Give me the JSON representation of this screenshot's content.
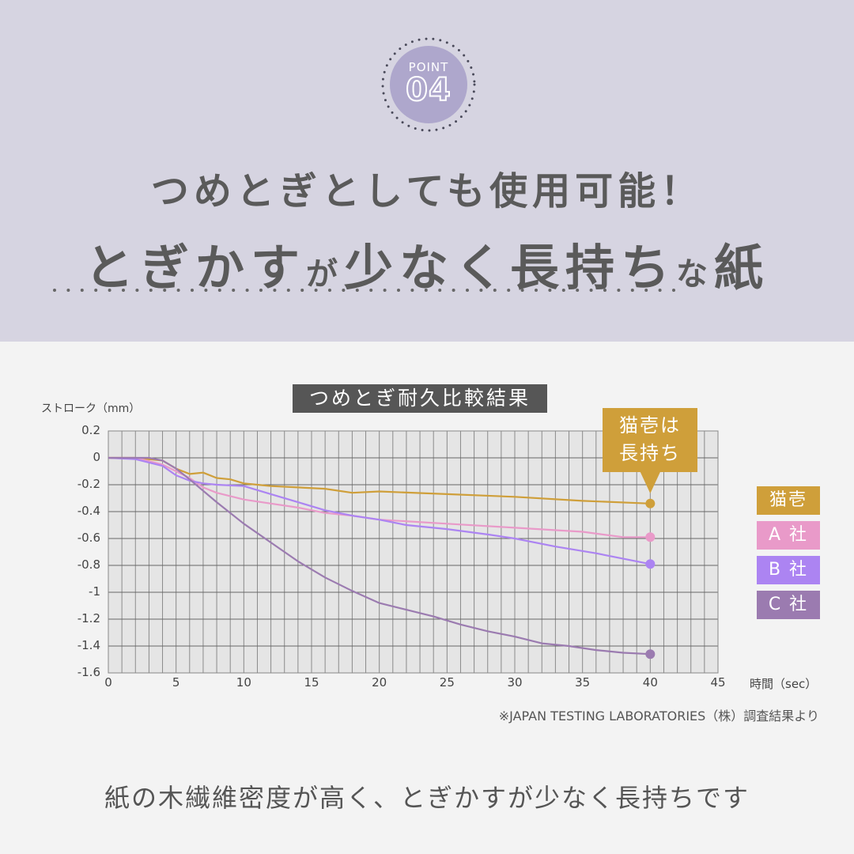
{
  "header": {
    "badge_label": "POINT",
    "badge_number": "04",
    "title_line1": "つめとぎとしても使用可能！",
    "title_line2_parts": [
      "とぎかす",
      "が",
      "少なく長持ち",
      "な",
      "紙"
    ]
  },
  "colors": {
    "header_bg": "#d6d4e1",
    "badge": "#aea7cc",
    "body_bg": "#f3f3f3",
    "nekoichi": "#cf9f3a",
    "company_a": "#e99ac9",
    "company_b": "#ac84f2",
    "company_c": "#9b7bb0",
    "chart_title_bg": "#565656",
    "plot_bg": "#e5e5e5"
  },
  "chart_data": {
    "type": "line",
    "title": "つめとぎ耐久比較結果",
    "xlabel": "時間（sec）",
    "ylabel": "ストローク（mm）",
    "xlim": [
      0,
      45
    ],
    "ylim": [
      -1.6,
      0.2
    ],
    "xticks": [
      "0",
      "5",
      "10",
      "15",
      "20",
      "25",
      "30",
      "35",
      "40",
      "45"
    ],
    "yticks": [
      "0.2",
      "0",
      "-0.2",
      "-0.4",
      "-0.6",
      "-0.8",
      "-1",
      "-1.2",
      "-1.4",
      "-1.6"
    ],
    "grid": true,
    "legend_position": "right",
    "series": [
      {
        "name": "猫壱",
        "color": "#cf9f3a",
        "x": [
          0,
          2,
          4,
          5,
          6,
          7,
          8,
          9,
          10,
          11,
          12,
          14,
          16,
          18,
          20,
          25,
          30,
          35,
          40
        ],
        "values": [
          0,
          0,
          -0.02,
          -0.08,
          -0.12,
          -0.11,
          -0.15,
          -0.16,
          -0.19,
          -0.2,
          -0.21,
          -0.22,
          -0.23,
          -0.26,
          -0.25,
          -0.27,
          -0.29,
          -0.32,
          -0.34
        ],
        "end_value": -0.34
      },
      {
        "name": "A 社",
        "color": "#e99ac9",
        "x": [
          0,
          2,
          4,
          5,
          6,
          7,
          8,
          10,
          12,
          14,
          16,
          18,
          20,
          25,
          30,
          35,
          38,
          40
        ],
        "values": [
          0,
          0,
          -0.05,
          -0.1,
          -0.15,
          -0.22,
          -0.26,
          -0.31,
          -0.34,
          -0.37,
          -0.41,
          -0.43,
          -0.46,
          -0.49,
          -0.52,
          -0.55,
          -0.59,
          -0.59
        ],
        "end_value": -0.59
      },
      {
        "name": "B 社",
        "color": "#ac84f2",
        "x": [
          0,
          2,
          4,
          5,
          6,
          7,
          8,
          10,
          12,
          14,
          16,
          18,
          20,
          22,
          25,
          28,
          30,
          33,
          36,
          40
        ],
        "values": [
          0,
          -0.01,
          -0.06,
          -0.13,
          -0.17,
          -0.19,
          -0.2,
          -0.21,
          -0.27,
          -0.33,
          -0.39,
          -0.43,
          -0.46,
          -0.5,
          -0.53,
          -0.57,
          -0.6,
          -0.66,
          -0.71,
          -0.79
        ],
        "end_value": -0.79
      },
      {
        "name": "C 社",
        "color": "#9b7bb0",
        "x": [
          0,
          3,
          4,
          5,
          6,
          8,
          10,
          12,
          14,
          16,
          18,
          20,
          22,
          24,
          26,
          28,
          30,
          32,
          34,
          36,
          38,
          40
        ],
        "values": [
          0,
          0,
          -0.02,
          -0.08,
          -0.16,
          -0.33,
          -0.49,
          -0.63,
          -0.77,
          -0.89,
          -0.99,
          -1.08,
          -1.13,
          -1.18,
          -1.24,
          -1.29,
          -1.33,
          -1.38,
          -1.4,
          -1.43,
          -1.45,
          -1.46
        ],
        "end_value": -1.46
      }
    ],
    "annotation": "猫壱は長持ち"
  },
  "chart": {
    "title": "つめとぎ耐久比較結果",
    "ylabel": "ストローク（mm）",
    "xlabel": "時間（sec）",
    "callout": [
      "猫壱は",
      "長持ち"
    ],
    "legend": [
      "猫壱",
      "A 社",
      "B 社",
      "C 社"
    ],
    "source": "※JAPAN TESTING LABORATORIES（株）調査結果より"
  },
  "footer": {
    "text": "紙の木繊維密度が高く、とぎかすが少なく長持ちです"
  }
}
